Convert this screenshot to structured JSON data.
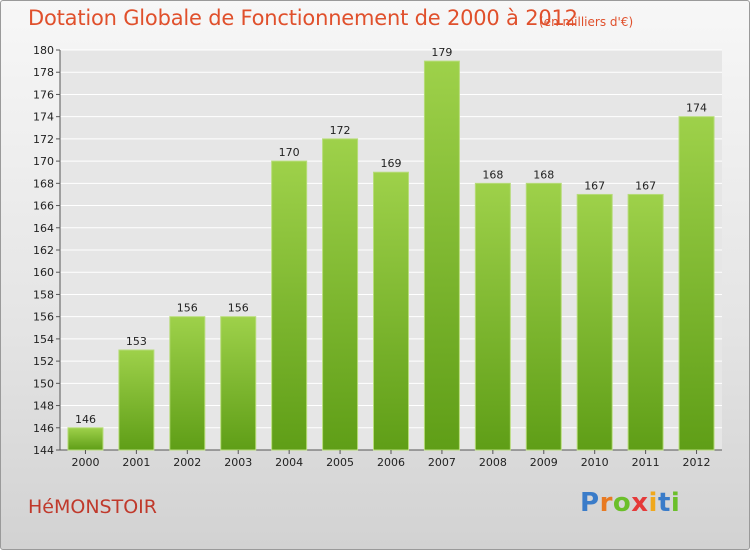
{
  "title": "Dotation Globale de Fonctionnement de 2000 à 2012",
  "unit": "(en milliers d'€)",
  "commune": "HéMONSTOIR",
  "logo": {
    "text": "Proxiti"
  },
  "colors": {
    "bar": "#7fbf2e",
    "bar_light": "#9ed14a",
    "title": "#e0502c",
    "commune": "#c0392b",
    "grid": "#ffffff"
  },
  "chart_data": {
    "type": "bar",
    "title": "Dotation Globale de Fonctionnement de 2000 à 2012",
    "subtitle": "(en milliers d'€)",
    "xlabel": "",
    "ylabel": "",
    "categories": [
      "2000",
      "2001",
      "2002",
      "2003",
      "2004",
      "2005",
      "2006",
      "2007",
      "2008",
      "2009",
      "2010",
      "2011",
      "2012"
    ],
    "values": [
      146,
      153,
      156,
      156,
      170,
      172,
      169,
      179,
      168,
      168,
      167,
      167,
      174
    ],
    "ylim": [
      144,
      180
    ],
    "yticks": [
      144,
      146,
      148,
      150,
      152,
      154,
      156,
      158,
      160,
      162,
      164,
      166,
      168,
      170,
      172,
      174,
      176,
      178,
      180
    ],
    "grid": true,
    "legend": "none"
  }
}
